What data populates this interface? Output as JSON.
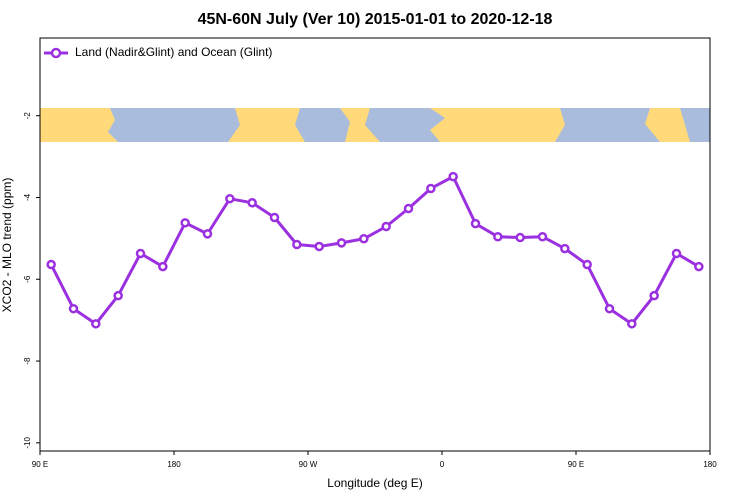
{
  "chart_data": {
    "type": "line",
    "title": "45N-60N July (Ver 10)   2015-01-01 to 2020-12-18",
    "x_label": "Longitude (deg E)",
    "y_label": "XCO2 - MLO trend (ppm)",
    "xlim": [
      90,
      540
    ],
    "xticks": [
      {
        "value": 90,
        "label": "90 E"
      },
      180,
      {
        "value": 270,
        "label": "90 W"
      },
      {
        "value": 360,
        "label": "0"
      },
      {
        "value": 450,
        "label": "90 E"
      },
      {
        "value": 540,
        "label": "180"
      }
    ],
    "ylim": [
      -10.2,
      -0.1
    ],
    "yticks": [
      -10,
      -8,
      -6,
      -4,
      -2
    ],
    "legend": "top-left",
    "x": [
      97.5,
      112.5,
      127.5,
      142.5,
      157.5,
      172.5,
      187.5,
      202.5,
      217.5,
      232.5,
      247.5,
      262.5,
      277.5,
      292.5,
      307.5,
      322.5,
      337.5,
      352.5,
      367.5,
      382.5,
      397.5,
      412.5,
      427.5,
      442.5,
      457.5,
      472.5,
      487.5,
      502.5,
      517.5,
      532.5
    ],
    "series": [
      {
        "name": "Land (Nadir&Glint) and Ocean (Glint)",
        "color": "#9b30e0",
        "values": [
          -5.64,
          -6.72,
          -7.09,
          -6.4,
          -5.37,
          -5.69,
          -4.62,
          -4.89,
          -4.03,
          -4.13,
          -4.49,
          -5.15,
          -5.2,
          -5.11,
          -5.01,
          -4.71,
          -4.27,
          -3.78,
          -3.49,
          -4.64,
          -4.96,
          -4.98,
          -4.96,
          -5.25,
          -5.64,
          -6.72,
          -7.09,
          -6.4,
          -5.37,
          -5.69
        ]
      }
    ]
  }
}
